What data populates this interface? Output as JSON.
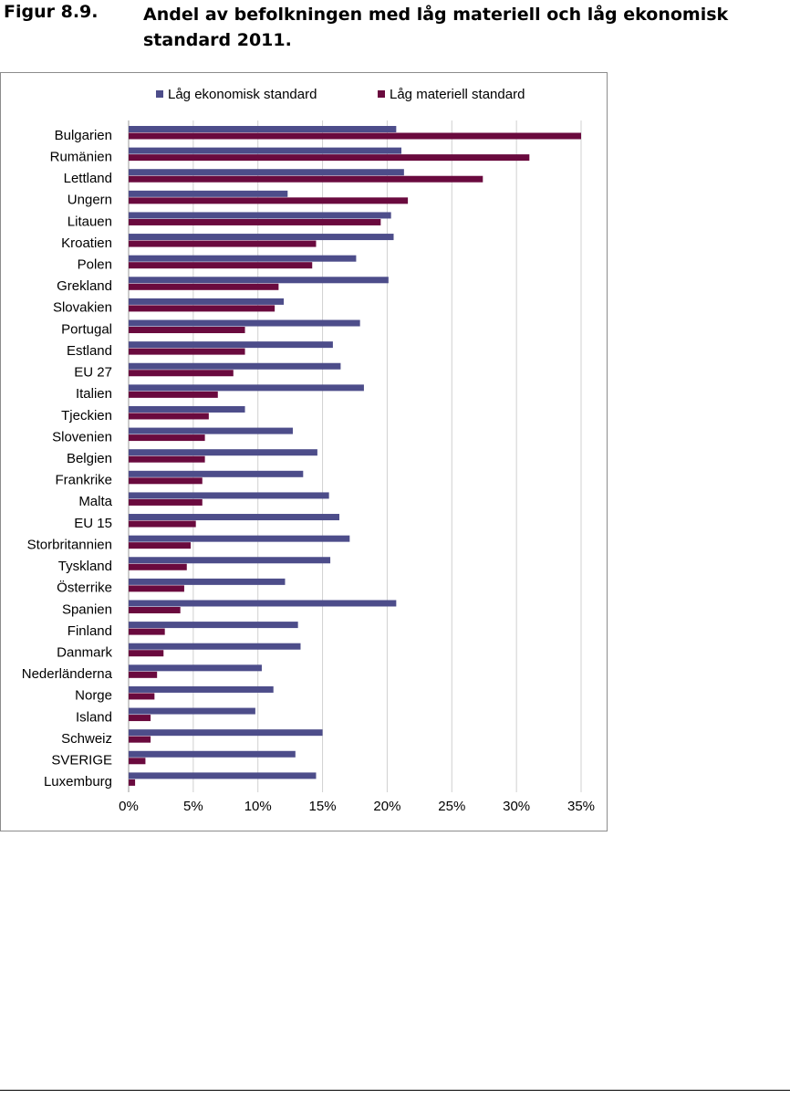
{
  "figure": {
    "label": "Figur 8.9.",
    "title": "Andel av befolkningen med låg materiell och låg ekonomisk standard 2011."
  },
  "chart_data": {
    "type": "bar",
    "orientation": "horizontal",
    "categories": [
      "Bulgarien",
      "Rumänien",
      "Lettland",
      "Ungern",
      "Litauen",
      "Kroatien",
      "Polen",
      "Grekland",
      "Slovakien",
      "Portugal",
      "Estland",
      "EU 27",
      "Italien",
      "Tjeckien",
      "Slovenien",
      "Belgien",
      "Frankrike",
      "Malta",
      "EU 15",
      "Storbritannien",
      "Tyskland",
      "Österrike",
      "Spanien",
      "Finland",
      "Danmark",
      "Nederländerna",
      "Norge",
      "Island",
      "Schweiz",
      "SVERIGE",
      "Luxemburg"
    ],
    "series": [
      {
        "name": "Låg ekonomisk standard",
        "color": "#4d4d8a",
        "values": [
          20.7,
          21.1,
          21.3,
          12.3,
          20.3,
          20.5,
          17.6,
          20.1,
          12.0,
          17.9,
          15.8,
          16.4,
          18.2,
          9.0,
          12.7,
          14.6,
          13.5,
          15.5,
          16.3,
          17.1,
          15.6,
          12.1,
          20.7,
          13.1,
          13.3,
          10.3,
          11.2,
          9.8,
          15.0,
          12.9,
          14.5
        ]
      },
      {
        "name": "Låg materiell standard",
        "color": "#6a0a3e",
        "values": [
          35.0,
          31.0,
          27.4,
          21.6,
          19.5,
          14.5,
          14.2,
          11.6,
          11.3,
          9.0,
          9.0,
          8.1,
          6.9,
          6.2,
          5.9,
          5.9,
          5.7,
          5.7,
          5.2,
          4.8,
          4.5,
          4.3,
          4.0,
          2.8,
          2.7,
          2.2,
          2.0,
          1.7,
          1.7,
          1.3,
          0.5
        ]
      }
    ],
    "x_ticks": [
      "0%",
      "5%",
      "10%",
      "15%",
      "20%",
      "25%",
      "30%",
      "35%"
    ],
    "xlim": [
      0,
      35
    ],
    "grid": true,
    "legend_position": "top"
  }
}
